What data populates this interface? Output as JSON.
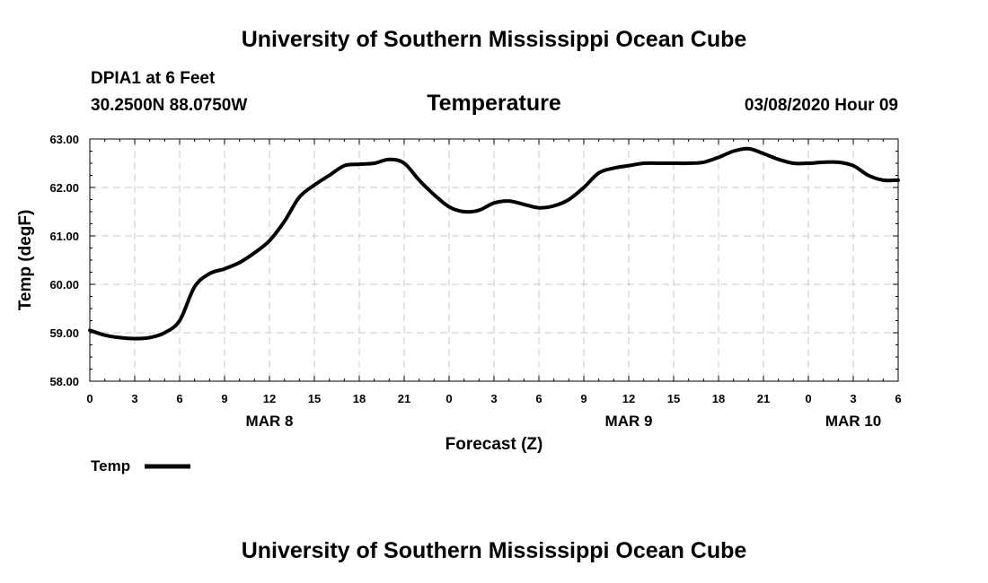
{
  "header": {
    "top_title": "University of Southern Mississippi Ocean Cube",
    "bottom_title": "University of Southern Mississippi Ocean Cube",
    "station": "DPIA1 at 6 Feet",
    "coordinates": "30.2500N 88.0750W",
    "date": "03/08/2020 Hour 09"
  },
  "chart_data": {
    "type": "line",
    "title": "Temperature",
    "xlabel": "Forecast (Z)",
    "ylabel": "Temp (degF)",
    "ylim": [
      58,
      63
    ],
    "xlim": [
      0,
      54
    ],
    "y_ticks": [
      "58.00",
      "59.00",
      "60.00",
      "61.00",
      "62.00",
      "63.00"
    ],
    "x_ticks": [
      "0",
      "3",
      "6",
      "9",
      "12",
      "15",
      "18",
      "21",
      "0",
      "3",
      "6",
      "9",
      "12",
      "15",
      "18",
      "21",
      "0",
      "3",
      "6"
    ],
    "day_labels": [
      {
        "label": "MAR 8",
        "hour": 12
      },
      {
        "label": "MAR 9",
        "hour": 36
      },
      {
        "label": "MAR 10",
        "hour": 51
      }
    ],
    "grid": true,
    "legend": {
      "label": "Temp",
      "placement": "bottom-left"
    },
    "series": [
      {
        "name": "Temp",
        "x": [
          0,
          1,
          2,
          3,
          4,
          5,
          6,
          7,
          8,
          9,
          10,
          11,
          12,
          13,
          14,
          15,
          16,
          17,
          18,
          19,
          20,
          21,
          22,
          23,
          24,
          25,
          26,
          27,
          28,
          29,
          30,
          31,
          32,
          33,
          34,
          35,
          36,
          37,
          38,
          39,
          40,
          41,
          42,
          43,
          44,
          45,
          46,
          47,
          48,
          49,
          50,
          51,
          52,
          53,
          54
        ],
        "values": [
          59.05,
          58.95,
          58.9,
          58.88,
          58.9,
          59.0,
          59.25,
          59.95,
          60.22,
          60.32,
          60.45,
          60.65,
          60.9,
          61.3,
          61.8,
          62.05,
          62.25,
          62.45,
          62.48,
          62.5,
          62.58,
          62.5,
          62.15,
          61.85,
          61.6,
          61.5,
          61.53,
          61.68,
          61.72,
          61.65,
          61.58,
          61.62,
          61.75,
          62.0,
          62.3,
          62.4,
          62.45,
          62.5,
          62.5,
          62.5,
          62.5,
          62.52,
          62.62,
          62.75,
          62.8,
          62.7,
          62.58,
          62.5,
          62.5,
          62.52,
          62.52,
          62.45,
          62.25,
          62.15,
          62.15
        ]
      }
    ]
  }
}
